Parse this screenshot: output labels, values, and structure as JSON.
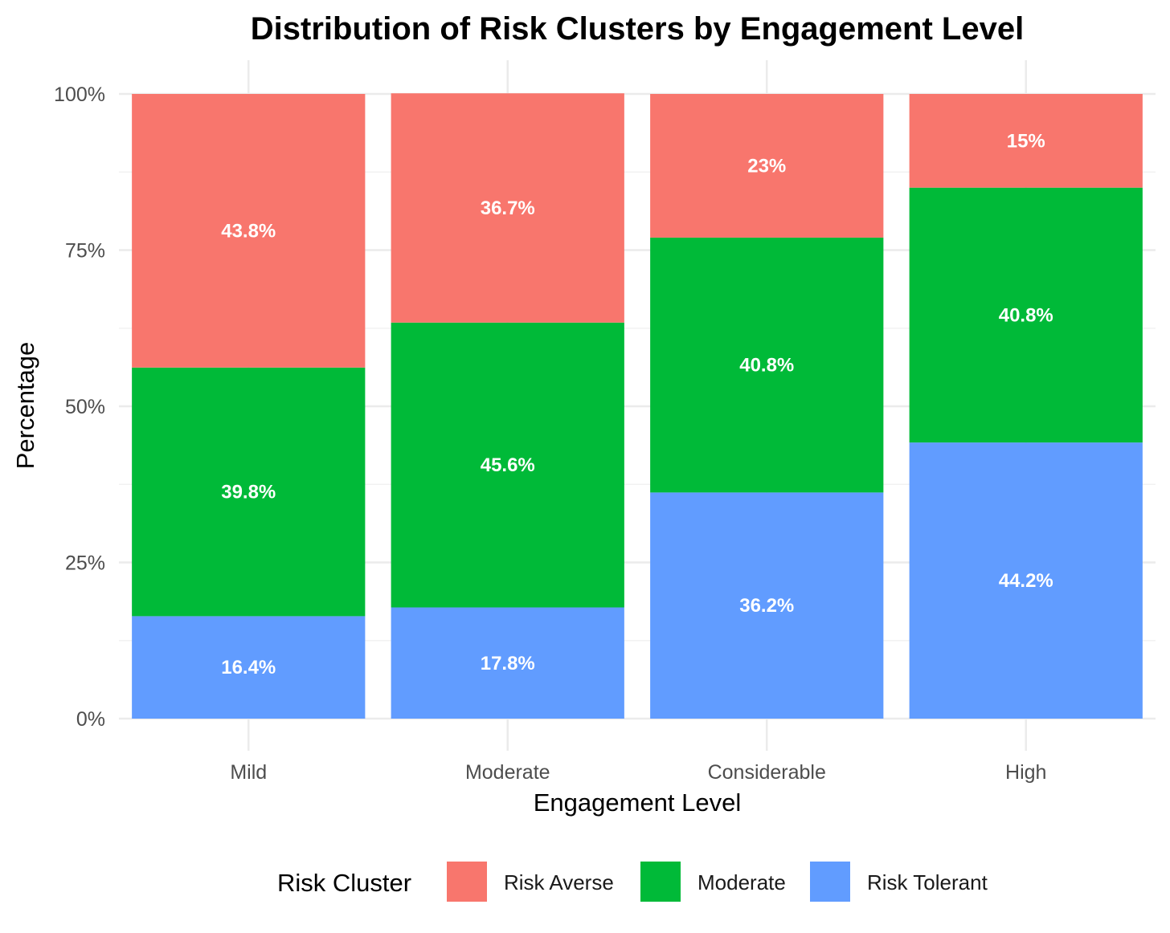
{
  "chart_data": {
    "type": "bar",
    "stacked": true,
    "title": "Distribution of Risk Clusters by Engagement Level",
    "xlabel": "Engagement Level",
    "ylabel": "Percentage",
    "ylim": [
      0,
      100
    ],
    "yticks": [
      0,
      25,
      50,
      75,
      100
    ],
    "ytick_labels": [
      "0%",
      "25%",
      "50%",
      "75%",
      "100%"
    ],
    "categories": [
      "Mild",
      "Moderate",
      "Considerable",
      "High"
    ],
    "legend_title": "Risk Cluster",
    "legend_position": "bottom",
    "series": [
      {
        "name": "Risk Tolerant",
        "color": "#619CFF",
        "values": [
          16.4,
          17.8,
          36.2,
          44.2
        ],
        "labels": [
          "16.4%",
          "17.8%",
          "36.2%",
          "44.2%"
        ]
      },
      {
        "name": "Moderate",
        "color": "#00BA38",
        "values": [
          39.8,
          45.6,
          40.8,
          40.8
        ],
        "labels": [
          "39.8%",
          "45.6%",
          "40.8%",
          "40.8%"
        ]
      },
      {
        "name": "Risk Averse",
        "color": "#F8766D",
        "values": [
          43.8,
          36.7,
          23,
          15
        ],
        "labels": [
          "43.8%",
          "36.7%",
          "23%",
          "15%"
        ]
      }
    ],
    "legend_order": [
      "Risk Averse",
      "Moderate",
      "Risk Tolerant"
    ]
  }
}
